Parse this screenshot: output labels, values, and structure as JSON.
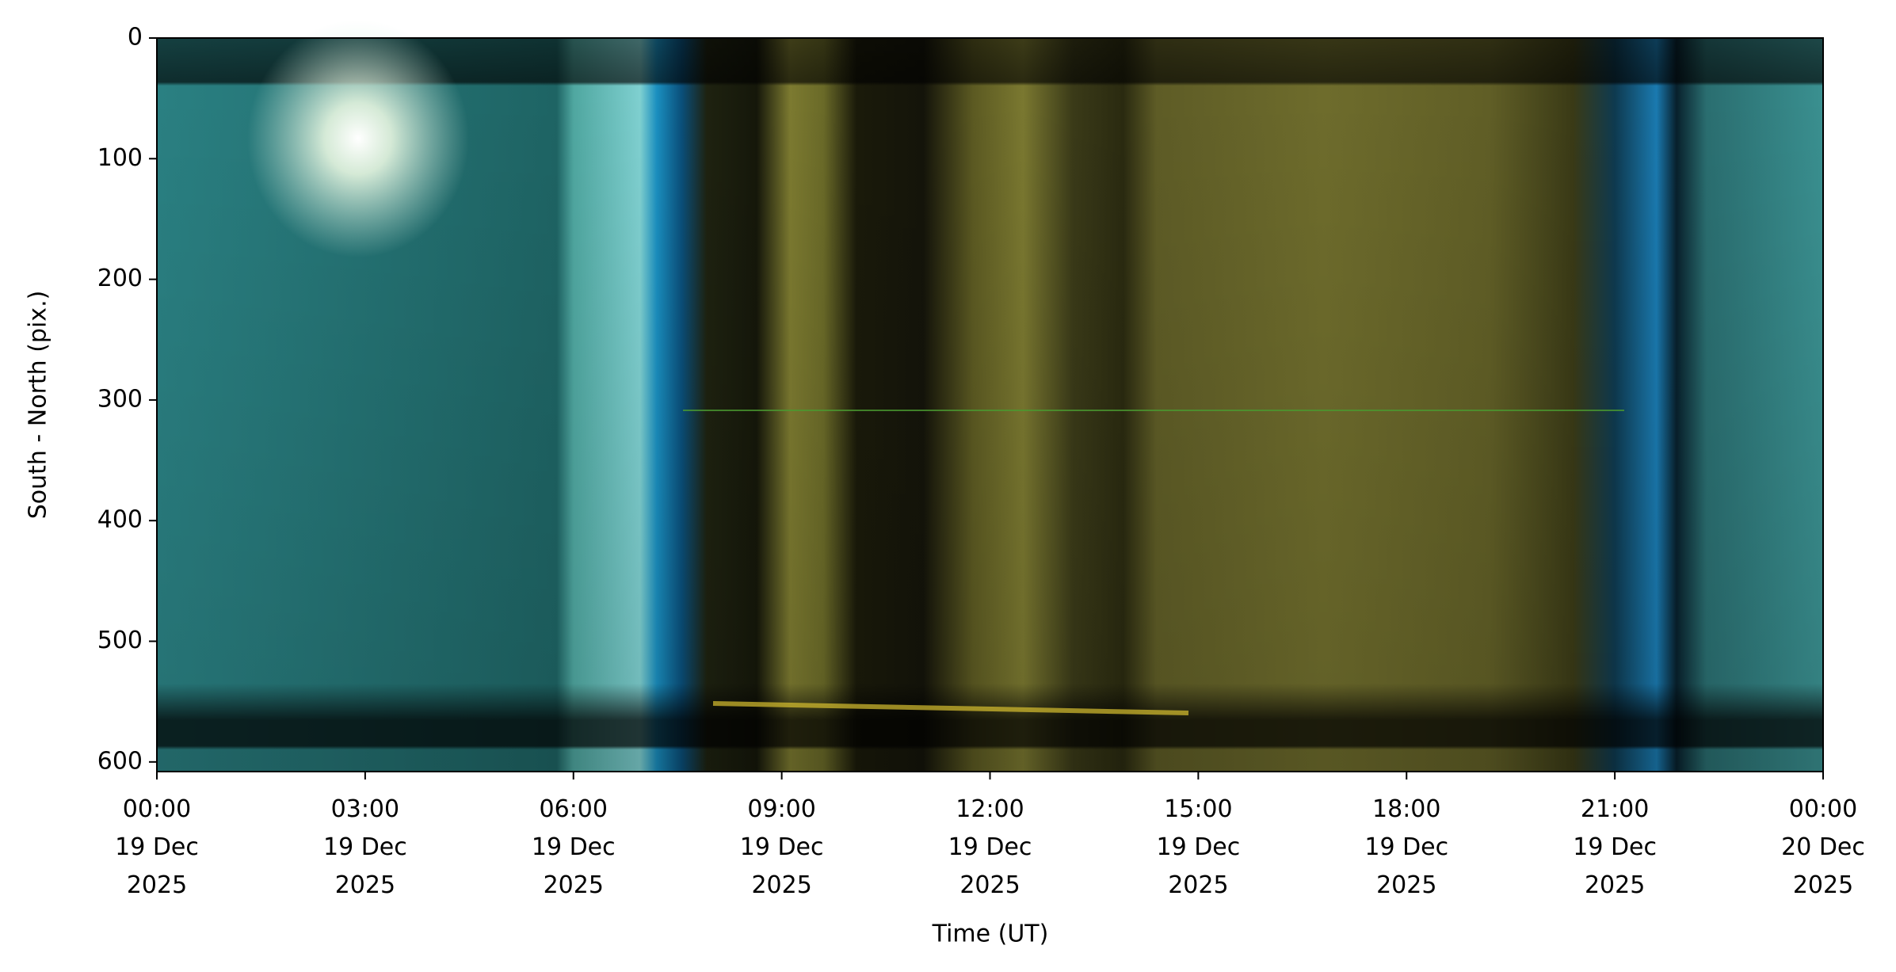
{
  "chart_data": {
    "type": "keogram",
    "xlabel": "Time (UT)",
    "ylabel": "South - North (pix.)",
    "xlim": [
      0,
      24
    ],
    "xticks": [
      {
        "value": 0,
        "label": "00:00\n19 Dec\n2025"
      },
      {
        "value": 3,
        "label": "03:00\n19 Dec\n2025"
      },
      {
        "value": 6,
        "label": "06:00\n19 Dec\n2025"
      },
      {
        "value": 9,
        "label": "09:00\n19 Dec\n2025"
      },
      {
        "value": 12,
        "label": "12:00\n19 Dec\n2025"
      },
      {
        "value": 15,
        "label": "15:00\n19 Dec\n2025"
      },
      {
        "value": 18,
        "label": "18:00\n19 Dec\n2025"
      },
      {
        "value": 21,
        "label": "21:00\n19 Dec\n2025"
      },
      {
        "value": 24,
        "label": "00:00\n20 Dec\n2025"
      }
    ],
    "ylim": [
      0,
      608
    ],
    "yaxis_inverted": true,
    "yticks": [
      0,
      100,
      200,
      300,
      400,
      500,
      600
    ]
  }
}
